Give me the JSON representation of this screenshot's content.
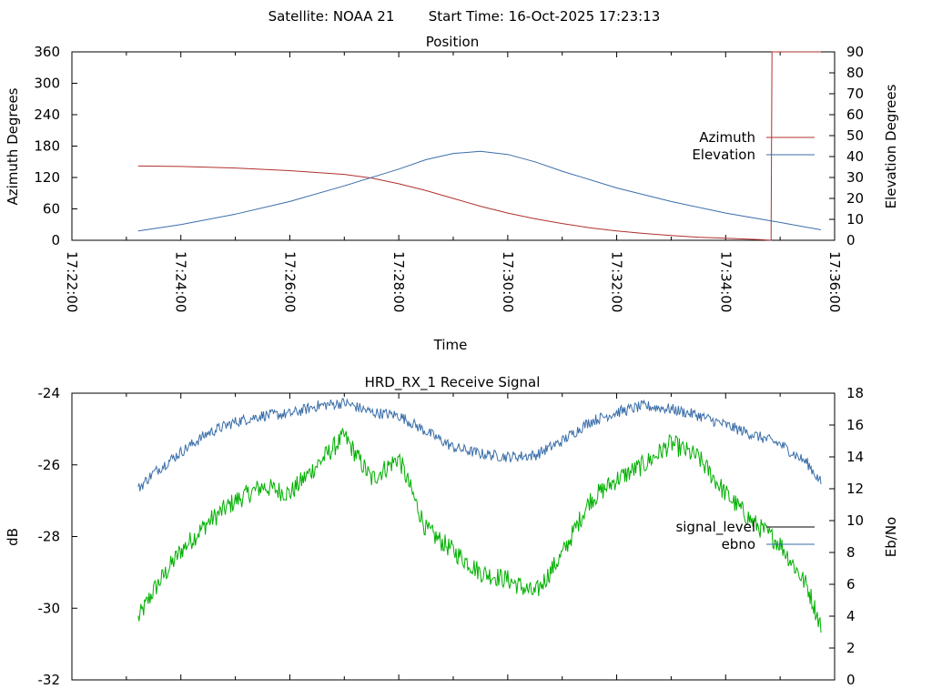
{
  "header": {
    "satellite_label": "Satellite: NOAA 21",
    "start_time_label": "Start Time: 16-Oct-2025 17:23:13"
  },
  "chart_data": [
    {
      "type": "line",
      "title": "Position",
      "xlabel": "Time",
      "ylabel": "Azimuth Degrees",
      "y2label": "Elevation Degrees",
      "x_ticks": [
        "17:22:00",
        "17:24:00",
        "17:26:00",
        "17:28:00",
        "17:30:00",
        "17:32:00",
        "17:34:00",
        "17:36:00"
      ],
      "xlim": [
        "17:22:00",
        "17:36:00"
      ],
      "ylim": [
        0,
        360
      ],
      "y_ticks": [
        0,
        60,
        120,
        180,
        240,
        300,
        360
      ],
      "y2lim": [
        0,
        90
      ],
      "y2_ticks": [
        0,
        10,
        20,
        30,
        40,
        50,
        60,
        70,
        80,
        90
      ],
      "grid": false,
      "legend": "right",
      "series": [
        {
          "name": "Azimuth",
          "axis": "y",
          "color": "#b03030",
          "x": [
            "17:23:13",
            "17:24:00",
            "17:25:00",
            "17:26:00",
            "17:27:00",
            "17:27:30",
            "17:28:00",
            "17:28:30",
            "17:29:00",
            "17:29:30",
            "17:30:00",
            "17:30:30",
            "17:31:00",
            "17:31:30",
            "17:32:00",
            "17:32:30",
            "17:33:00",
            "17:33:30",
            "17:34:00",
            "17:34:40",
            "17:34:50",
            "17:34:51",
            "17:35:45"
          ],
          "values": [
            142,
            141,
            138,
            133,
            126,
            119,
            108,
            95,
            80,
            65,
            52,
            41,
            32,
            24,
            18,
            13,
            9,
            6,
            4,
            1,
            0,
            360,
            360
          ]
        },
        {
          "name": "Elevation",
          "axis": "y2",
          "color": "#3a6ea8",
          "x": [
            "17:23:13",
            "17:24:00",
            "17:25:00",
            "17:26:00",
            "17:27:00",
            "17:28:00",
            "17:28:30",
            "17:29:00",
            "17:29:30",
            "17:30:00",
            "17:30:30",
            "17:31:00",
            "17:32:00",
            "17:33:00",
            "17:34:00",
            "17:35:00",
            "17:35:45"
          ],
          "values": [
            4.5,
            7.5,
            12.5,
            18.5,
            26,
            34,
            38.5,
            41.5,
            42.5,
            41,
            37.5,
            33,
            25,
            18.5,
            13,
            8.5,
            5
          ]
        }
      ]
    },
    {
      "type": "line",
      "title": "HRD_RX_1 Receive Signal",
      "xlabel": "",
      "ylabel": "dB",
      "y2label": "Eb/No",
      "x_ticks": [
        "17:22:00",
        "17:24:00",
        "17:26:00",
        "17:28:00",
        "17:30:00",
        "17:32:00",
        "17:34:00",
        "17:36:00"
      ],
      "xlim": [
        "17:22:00",
        "17:36:00"
      ],
      "ylim": [
        -32,
        -24
      ],
      "y_ticks": [
        -32,
        -30,
        -28,
        -26,
        -24
      ],
      "y2lim": [
        0,
        18
      ],
      "y2_ticks": [
        0,
        2,
        4,
        6,
        8,
        10,
        12,
        14,
        16,
        18
      ],
      "grid": false,
      "legend": "right",
      "series": [
        {
          "name": "signal_level",
          "axis": "y",
          "color": "#00b000",
          "x": [
            "17:23:13",
            "17:23:30",
            "17:24:00",
            "17:24:30",
            "17:25:00",
            "17:25:30",
            "17:26:00",
            "17:26:30",
            "17:27:00",
            "17:27:30",
            "17:28:00",
            "17:28:30",
            "17:29:00",
            "17:29:30",
            "17:30:00",
            "17:30:30",
            "17:31:00",
            "17:31:30",
            "17:32:00",
            "17:32:30",
            "17:33:00",
            "17:33:30",
            "17:34:00",
            "17:34:30",
            "17:35:00",
            "17:35:30",
            "17:35:45"
          ],
          "values": [
            -30.3,
            -29.5,
            -28.4,
            -27.6,
            -27.0,
            -26.6,
            -26.8,
            -26.0,
            -25.2,
            -26.4,
            -25.8,
            -27.8,
            -28.4,
            -29.0,
            -29.2,
            -29.6,
            -28.5,
            -27.0,
            -26.4,
            -26.0,
            -25.4,
            -25.8,
            -26.8,
            -27.6,
            -28.2,
            -29.4,
            -30.5
          ]
        },
        {
          "name": "ebno",
          "axis": "y2",
          "color": "#3a6ea8",
          "x": [
            "17:23:13",
            "17:23:30",
            "17:24:00",
            "17:24:30",
            "17:25:00",
            "17:25:30",
            "17:26:00",
            "17:26:30",
            "17:27:00",
            "17:27:30",
            "17:28:00",
            "17:28:30",
            "17:29:00",
            "17:29:30",
            "17:30:00",
            "17:30:30",
            "17:31:00",
            "17:31:30",
            "17:32:00",
            "17:32:30",
            "17:33:00",
            "17:33:30",
            "17:34:00",
            "17:34:30",
            "17:35:00",
            "17:35:30",
            "17:35:45"
          ],
          "values": [
            12.0,
            13.0,
            14.3,
            15.5,
            16.2,
            16.6,
            16.7,
            17.2,
            17.4,
            16.8,
            16.6,
            15.6,
            14.6,
            14.2,
            14.0,
            14.1,
            15.0,
            16.2,
            16.8,
            17.2,
            17.0,
            16.6,
            16.0,
            15.4,
            14.8,
            13.6,
            12.4
          ]
        }
      ]
    }
  ]
}
